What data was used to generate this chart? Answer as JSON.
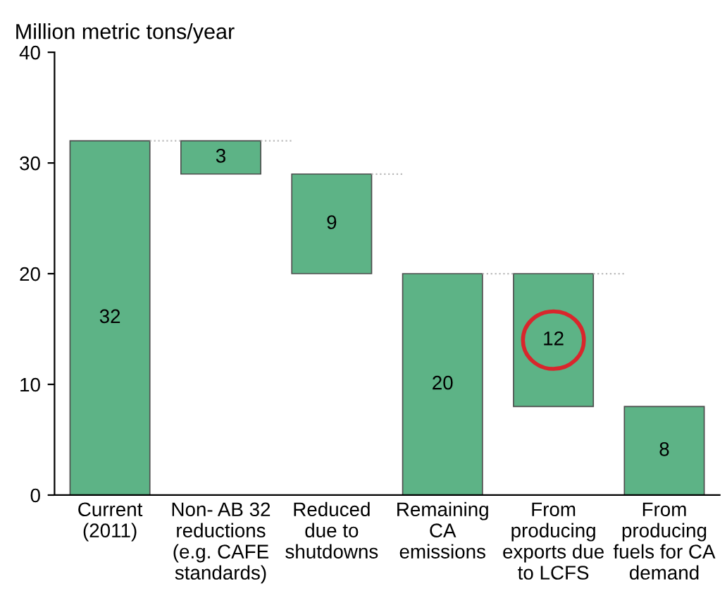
{
  "chart_data": {
    "type": "bar",
    "ylabel": "Million metric tons/year",
    "categories": [
      "Current\n(2011)",
      "Non- AB 32\nreductions\n(e.g. CAFE\nstandards)",
      "Reduced\ndue to\nshutdowns",
      "Remaining\nCA\nemissions",
      "From\nproducing\nexports due\nto LCFS",
      "From\nproducing\nfuels for CA\ndemand"
    ],
    "values": [
      32,
      3,
      9,
      20,
      12,
      8
    ],
    "base": [
      0,
      29,
      20,
      0,
      8,
      0
    ],
    "color": "#5db386",
    "data_labels": true,
    "ylim": [
      0,
      40
    ],
    "yticks": [
      0,
      10,
      20,
      30,
      40
    ],
    "grid": false
  }
}
